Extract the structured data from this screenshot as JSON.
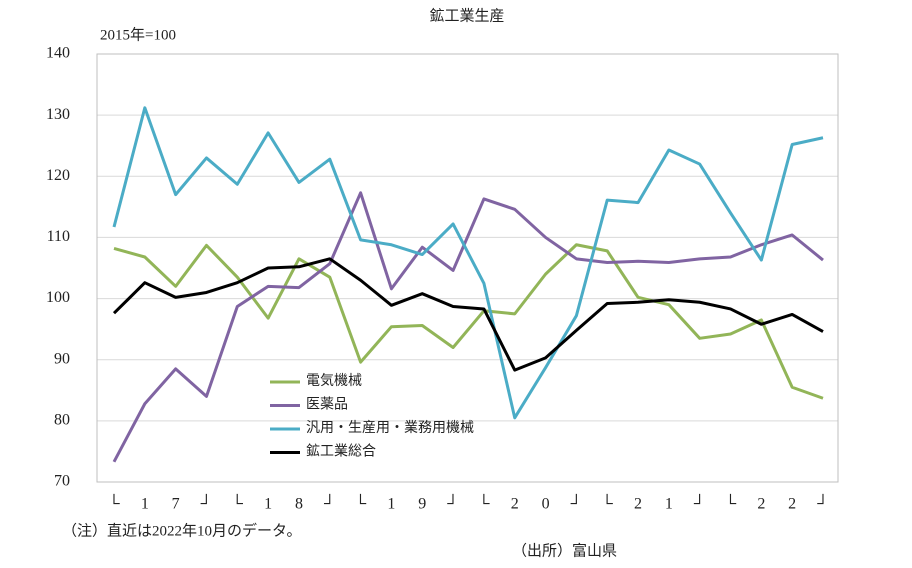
{
  "chart_data": {
    "type": "line",
    "title": "鉱工業生産",
    "subtitle": "2015年=100",
    "note": "（注）直近は2022年10月のデータ。",
    "source": "（出所）富山県",
    "categories": [
      "└",
      "1",
      "7",
      "┘",
      "└",
      "1",
      "8",
      "┘",
      "└",
      "1",
      "9",
      "┘",
      "└",
      "2",
      "0",
      "┘",
      "└",
      "2",
      "1",
      "┘",
      "└",
      "2",
      "2",
      "┘"
    ],
    "series": [
      {
        "name": "電気機械",
        "color": "#92b558",
        "values": [
          108.2,
          106.8,
          102,
          108.7,
          103.5,
          96.8,
          106.5,
          103.5,
          89.6,
          95.4,
          95.6,
          92,
          98,
          97.5,
          104,
          108.8,
          107.8,
          100.2,
          99,
          93.5,
          94.2,
          96.5,
          85.5,
          83.7
        ]
      },
      {
        "name": "医薬品",
        "color": "#8064a2",
        "values": [
          73.3,
          82.8,
          88.5,
          84,
          98.7,
          102,
          101.8,
          105.7,
          117.3,
          101.6,
          108.4,
          104.6,
          116.3,
          114.6,
          110,
          106.5,
          105.9,
          106.1,
          105.9,
          106.5,
          106.8,
          108.8,
          110.4,
          106.3
        ]
      },
      {
        "name": "汎用・生産用・業務用機械",
        "color": "#4bacc6",
        "values": [
          111.7,
          131.2,
          117,
          123,
          118.7,
          127.1,
          119,
          122.8,
          109.6,
          108.8,
          107.2,
          112.2,
          102.5,
          80.5,
          88.7,
          97.2,
          116.1,
          115.7,
          124.3,
          122,
          114,
          106.3,
          125.2,
          126.3
        ]
      },
      {
        "name": "鉱工業総合",
        "color": "#000000",
        "values": [
          97.6,
          102.6,
          100.2,
          101,
          102.6,
          105,
          105.2,
          106.5,
          103,
          98.9,
          100.8,
          98.7,
          98.3,
          88.3,
          90.3,
          94.8,
          99.2,
          99.4,
          99.8,
          99.4,
          98.3,
          95.8,
          97.4,
          94.6
        ]
      }
    ],
    "ylim": [
      70,
      140
    ],
    "yticks": [
      70,
      80,
      90,
      100,
      110,
      120,
      130,
      140
    ],
    "grid": true
  }
}
